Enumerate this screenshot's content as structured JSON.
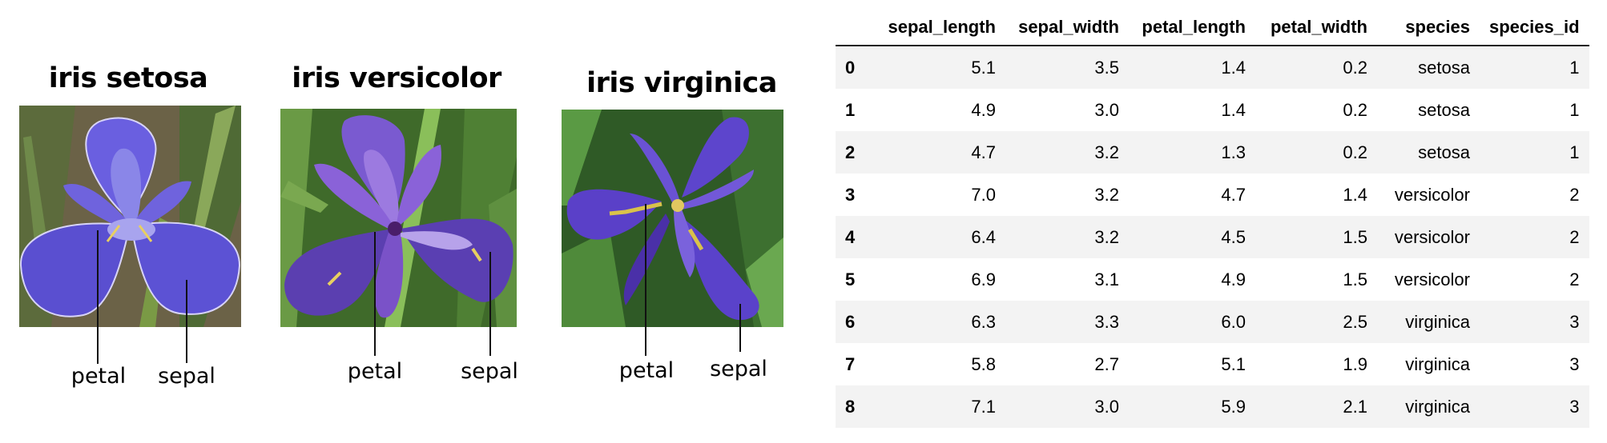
{
  "flowers": [
    {
      "title": "iris setosa",
      "petal_label": "petal",
      "sepal_label": "sepal"
    },
    {
      "title": "iris versicolor",
      "petal_label": "petal",
      "sepal_label": "sepal"
    },
    {
      "title": "iris virginica",
      "petal_label": "petal",
      "sepal_label": "sepal"
    }
  ],
  "table": {
    "columns": [
      "sepal_length",
      "sepal_width",
      "petal_length",
      "petal_width",
      "species",
      "species_id"
    ],
    "rows": [
      {
        "index": "0",
        "sepal_length": "5.1",
        "sepal_width": "3.5",
        "petal_length": "1.4",
        "petal_width": "0.2",
        "species": "setosa",
        "species_id": "1"
      },
      {
        "index": "1",
        "sepal_length": "4.9",
        "sepal_width": "3.0",
        "petal_length": "1.4",
        "petal_width": "0.2",
        "species": "setosa",
        "species_id": "1"
      },
      {
        "index": "2",
        "sepal_length": "4.7",
        "sepal_width": "3.2",
        "petal_length": "1.3",
        "petal_width": "0.2",
        "species": "setosa",
        "species_id": "1"
      },
      {
        "index": "3",
        "sepal_length": "7.0",
        "sepal_width": "3.2",
        "petal_length": "4.7",
        "petal_width": "1.4",
        "species": "versicolor",
        "species_id": "2"
      },
      {
        "index": "4",
        "sepal_length": "6.4",
        "sepal_width": "3.2",
        "petal_length": "4.5",
        "petal_width": "1.5",
        "species": "versicolor",
        "species_id": "2"
      },
      {
        "index": "5",
        "sepal_length": "6.9",
        "sepal_width": "3.1",
        "petal_length": "4.9",
        "petal_width": "1.5",
        "species": "versicolor",
        "species_id": "2"
      },
      {
        "index": "6",
        "sepal_length": "6.3",
        "sepal_width": "3.3",
        "petal_length": "6.0",
        "petal_width": "2.5",
        "species": "virginica",
        "species_id": "3"
      },
      {
        "index": "7",
        "sepal_length": "5.8",
        "sepal_width": "2.7",
        "petal_length": "5.1",
        "petal_width": "1.9",
        "species": "virginica",
        "species_id": "3"
      },
      {
        "index": "8",
        "sepal_length": "7.1",
        "sepal_width": "3.0",
        "petal_length": "5.9",
        "petal_width": "2.1",
        "species": "virginica",
        "species_id": "3"
      }
    ]
  }
}
